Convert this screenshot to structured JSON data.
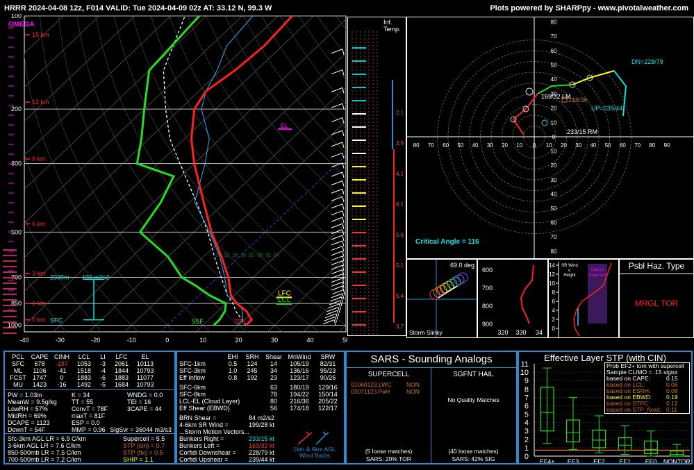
{
  "header": {
    "title": "HRRR 2024-04-08 12z, F014  VALID: Tue 2024-04-09 02z  AT: 33.12 N, 99.3 W",
    "credit": "Plots powered by SHARPpy - www.pivotalweather.com"
  },
  "colors": {
    "temp": "#ff2020",
    "dew": "#20e020",
    "wetbulb": "#20b0ff",
    "parcel": "#ffffff",
    "accent": "#2b8ccf",
    "cyan": "#00e5e5",
    "yellow": "#ffff00",
    "magenta": "#ff00ff",
    "orange": "#d07020"
  },
  "skewt": {
    "omega_label": "OMEGA",
    "pressure_ticks": [
      "100",
      "200",
      "300",
      "500",
      "700",
      "850",
      "1000"
    ],
    "pressure_values": [
      100,
      200,
      300,
      500,
      700,
      850,
      1000
    ],
    "temp_ticks": [
      "-40",
      "-30",
      "-20",
      "-10",
      "0",
      "10",
      "20",
      "30",
      "40",
      "50"
    ],
    "temp_values": [
      -40,
      -30,
      -20,
      -10,
      0,
      10,
      20,
      30,
      40,
      50
    ],
    "height_labels": [
      {
        "text": "15 km",
        "p": 115
      },
      {
        "text": "12 km",
        "p": 190
      },
      {
        "text": "9 km",
        "p": 290
      },
      {
        "text": "6 km",
        "p": 470
      },
      {
        "text": "3 km",
        "p": 680
      },
      {
        "text": "1 km",
        "p": 850
      },
      {
        "text": "0 km",
        "p": 960
      }
    ],
    "el_label": "EL",
    "lfc_label": "LFC",
    "lcl_label": "LCL",
    "sfc_label": "SFC",
    "depth_label": "2339m",
    "srh_label": "192 m2s2",
    "sfc_temp": "70F",
    "sfc_dew": "55F",
    "mixing_ratio_labels": [
      "10",
      "12",
      "16",
      "18",
      "22",
      "28",
      "32",
      "34"
    ],
    "temperature_profile": [
      [
        1000,
        22
      ],
      [
        960,
        22
      ],
      [
        900,
        18
      ],
      [
        850,
        13
      ],
      [
        800,
        9
      ],
      [
        700,
        3
      ],
      [
        600,
        -5
      ],
      [
        500,
        -15
      ],
      [
        400,
        -26
      ],
      [
        300,
        -40
      ],
      [
        250,
        -48
      ],
      [
        200,
        -56
      ],
      [
        175,
        -58
      ],
      [
        150,
        -56
      ],
      [
        125,
        -55
      ],
      [
        100,
        -56
      ]
    ],
    "dewpoint_profile": [
      [
        1000,
        13
      ],
      [
        960,
        13
      ],
      [
        900,
        12
      ],
      [
        850,
        10
      ],
      [
        800,
        3
      ],
      [
        750,
        -3
      ],
      [
        700,
        -10
      ],
      [
        600,
        -20
      ],
      [
        500,
        -35
      ],
      [
        400,
        -38
      ],
      [
        330,
        -42
      ],
      [
        300,
        -56
      ],
      [
        250,
        -62
      ],
      [
        200,
        -70
      ],
      [
        150,
        -80
      ],
      [
        100,
        -82
      ]
    ],
    "parcel_profile": [
      [
        1000,
        22
      ],
      [
        900,
        15
      ],
      [
        850,
        12
      ],
      [
        800,
        8
      ],
      [
        700,
        1
      ],
      [
        600,
        -7
      ],
      [
        500,
        -16
      ],
      [
        400,
        -28
      ],
      [
        300,
        -44
      ],
      [
        250,
        -54
      ],
      [
        200,
        -64
      ],
      [
        150,
        -76
      ],
      [
        100,
        -86
      ]
    ]
  },
  "inferred_temp_label": "Inf. Temp.",
  "inferred_temp_values": [
    "2.1",
    "3.9",
    "4.1",
    "6.1",
    "5.8",
    "5.1",
    "5.4",
    "3.7"
  ],
  "hodograph": {
    "rings": [
      "10",
      "20",
      "30",
      "40",
      "50",
      "60",
      "70",
      "80",
      "90"
    ],
    "x_ticks": [
      "90",
      "80",
      "70",
      "60",
      "50",
      "40",
      "30",
      "20",
      "10",
      "0",
      "10",
      "20",
      "30",
      "40",
      "50",
      "60",
      "70",
      "80",
      "90"
    ],
    "y_ticks": [
      "80",
      "70",
      "60",
      "50",
      "40",
      "30",
      "20",
      "10",
      "0",
      "10",
      "20",
      "30",
      "40",
      "50",
      "60",
      "70",
      "80"
    ],
    "labels": {
      "dn": "DN=228/79",
      "up": "UP=239/44",
      "lm": "169/32 LM",
      "rm": "233/15 RM",
      "mean": "216/36"
    },
    "critical_angle": "Critical Angle = 116"
  },
  "slinky": {
    "angle": "69.0 deg",
    "label": "Storm Slinky"
  },
  "theta_panel": {
    "y_ticks": [
      "600",
      "700",
      "800",
      "900"
    ],
    "x_ticks": [
      "320",
      "330",
      "34"
    ]
  },
  "sr_panel": {
    "label1": "SR Wind",
    "label2": "v.",
    "label3": "Height",
    "label4": "Classic Supercell",
    "ticks": [
      "14",
      "12",
      "10",
      "8",
      "6",
      "4",
      "2",
      "0"
    ]
  },
  "psbl_haz": {
    "title": "Psbl Haz. Type",
    "value": "MRGL TOR"
  },
  "thermo": {
    "header": [
      "PCL",
      "CAPE",
      "CINH",
      "LCL",
      "LI",
      "LFC",
      "EL"
    ],
    "rows": [
      [
        "SFC",
        "678",
        "-187",
        "1053",
        "-3",
        "2061",
        "10113"
      ],
      [
        "ML",
        "1106",
        "-41",
        "1518",
        "-4",
        "1844",
        "10793"
      ],
      [
        "FCST",
        "1747",
        "0",
        "1883",
        "-6",
        "1883",
        "11077"
      ],
      [
        "MU",
        "1423",
        "-16",
        "1492",
        "-5",
        "1684",
        "10793"
      ]
    ],
    "col1": [
      "PW = 1.03in",
      "MeanW = 9.5g/kg",
      "LowRH = 57%",
      "MidRH = 69%",
      "DCAPE = 1123",
      "DownT = 54F"
    ],
    "col2": [
      "K = 34",
      "TT = 55",
      "ConvT = 78F",
      "maxT = 81F",
      "ESP = 0.0",
      "MMP = 0.96"
    ],
    "col3": [
      "WNDG = 0.0",
      "TEI = 16",
      "3CAPE = 44",
      "",
      "",
      ""
    ],
    "sigsvr": "SigSvr = 36044 m3/s3",
    "lapse": [
      "Sfc-3km AGL LR = 6.9 C/km",
      "3-6km AGL LR = 7.6 C/km",
      "850-500mb LR = 7.5 C/km",
      "700-500mb LR = 7.2 C/km"
    ],
    "composite": [
      "Supercell = 5.5",
      "STP (cin) = 0.7",
      "STP (fix) = 0.5",
      "SHIP = 1.1"
    ]
  },
  "kinematic": {
    "header": [
      "",
      "EHI",
      "SRH",
      "Shear",
      "MnWind",
      "SRW"
    ],
    "rows1": [
      [
        "SFC-1km",
        "0.5",
        "124",
        "14",
        "105/19",
        "82/31"
      ],
      [
        "SFC-3km",
        "1.0",
        "245",
        "34",
        "136/16",
        "95/23"
      ],
      [
        "Eff Inflow",
        "0.8",
        "192",
        "23",
        "123/17",
        "90/26"
      ]
    ],
    "rows2": [
      [
        "SFC-6km",
        "",
        "",
        "63",
        "180/19",
        "129/16"
      ],
      [
        "SFC-8km",
        "",
        "",
        "78",
        "194/22",
        "150/14"
      ],
      [
        "LCL-EL (Cloud Layer)",
        "",
        "",
        "80",
        "216/36",
        "205/22"
      ],
      [
        "Eff Shear (EBWD)",
        "",
        "",
        "56",
        "174/18",
        "122/17"
      ]
    ],
    "brn": [
      "BRN Shear =",
      "84 m2/s2"
    ],
    "srwind": [
      "4-6km SR Wind =",
      "199/28 kt"
    ],
    "storm_title": "...Storm Motion Vectors...",
    "storm": [
      [
        "Bunkers Right =",
        "233/15 kt"
      ],
      [
        "Bunkers Left =",
        "169/32 kt"
      ],
      [
        "Corfidi Downshear =",
        "228/79 kt"
      ],
      [
        "Corfidi Upshear =",
        "239/44 kt"
      ]
    ],
    "barb_label1": "1km & 6km AGL",
    "barb_label2": "Wind Barbs"
  },
  "sars": {
    "title": "SARS - Sounding Analogs",
    "supercell": "SUPERCELL",
    "hail": "SGFNT HAIL",
    "sup_matches": [
      [
        "01060123.LWC",
        "NON"
      ],
      [
        "03071123.P#H",
        "NON"
      ]
    ],
    "hail_nomatch": "No Quality Matches",
    "sup_loose": "(5 loose matches)",
    "hail_loose": "(40 loose matches)",
    "sup_pct": "SARS: 20% TOR",
    "hail_pct": "SARS: 42% SIG"
  },
  "stp": {
    "title": "Effective Layer STP (with CIN)",
    "y_ticks": [
      "0",
      "1",
      "2",
      "3",
      "4",
      "5",
      "6",
      "7",
      "8",
      "9",
      "10",
      "11"
    ],
    "categories": [
      "EF4+",
      "EF3",
      "EF2",
      "EF1",
      "EF0",
      "NONTOR"
    ],
    "prob_title": "Prob EF2+ torn with supercell",
    "prob_clim": "Sample CLIMO = .15 sigtor",
    "prob_rows": [
      [
        "based on CAPE:",
        "0.15"
      ],
      [
        "based on LCL:",
        "0.06"
      ],
      [
        "based on ESRH:",
        "0.08"
      ],
      [
        "based on EBWD:",
        "0.19"
      ],
      [
        "based on STPC:",
        "0.12"
      ],
      [
        "based on STP_fixed:",
        "0.11"
      ]
    ]
  },
  "chart_data": {
    "type": "box",
    "title": "Effective Layer STP (with CIN)",
    "categories": [
      "EF4+",
      "EF3",
      "EF2",
      "EF1",
      "EF0",
      "NONTOR"
    ],
    "box_stats": [
      {
        "category": "EF4+",
        "whisker_low": 1.5,
        "q1": 3.0,
        "median": 5.2,
        "q3": 8.2,
        "whisker_high": 10.5
      },
      {
        "category": "EF3",
        "whisker_low": 0.8,
        "q1": 1.7,
        "median": 2.8,
        "q3": 4.3,
        "whisker_high": 7.0
      },
      {
        "category": "EF2",
        "whisker_low": 0.4,
        "q1": 1.0,
        "median": 1.9,
        "q3": 3.1,
        "whisker_high": 4.8
      },
      {
        "category": "EF1",
        "whisker_low": 0.2,
        "q1": 0.7,
        "median": 1.3,
        "q3": 2.2,
        "whisker_high": 3.6
      },
      {
        "category": "EF0",
        "whisker_low": 0.0,
        "q1": 0.3,
        "median": 0.8,
        "q3": 1.8,
        "whisker_high": 3.0
      },
      {
        "category": "NONTOR",
        "whisker_low": 0.0,
        "q1": 0.0,
        "median": 0.2,
        "q3": 0.6,
        "whisker_high": 1.4
      }
    ],
    "current_value": 0.7,
    "ylim": [
      0,
      11
    ]
  }
}
